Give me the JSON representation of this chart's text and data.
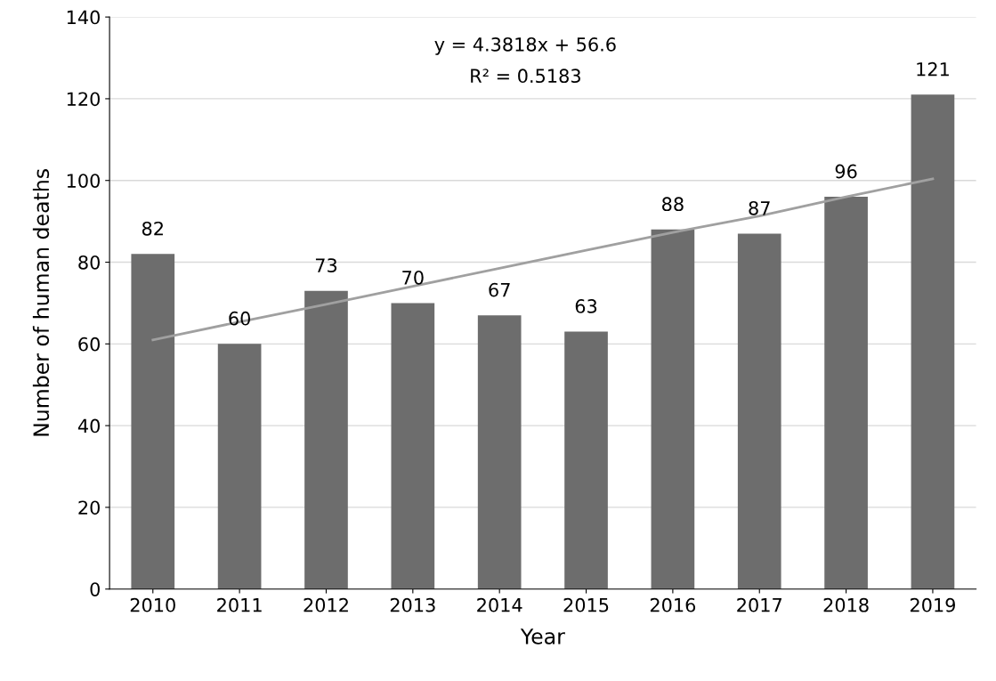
{
  "chart_data": {
    "type": "bar",
    "xlabel": "Year",
    "ylabel": "Number of human deaths",
    "categories": [
      "2010",
      "2011",
      "2012",
      "2013",
      "2014",
      "2015",
      "2016",
      "2017",
      "2018",
      "2019"
    ],
    "series": [
      {
        "color": "#6d6d6d",
        "values": [
          82,
          60,
          73,
          70,
          67,
          63,
          88,
          87,
          96,
          121
        ],
        "value_labels": [
          "82",
          "60",
          "73",
          "70",
          "67",
          "63",
          "88",
          "87",
          "96",
          "121"
        ]
      },
      {
        "type": "line",
        "color": "#a0a0a0",
        "values": [
          61.0,
          65.4,
          69.7,
          74.1,
          78.5,
          82.9,
          87.3,
          91.3,
          96.0,
          100.4
        ]
      }
    ],
    "ylim": [
      0,
      140
    ],
    "yticks": [
      0,
      20,
      40,
      60,
      80,
      100,
      120,
      140
    ],
    "grid": "y",
    "annotations": [
      "y = 4.3818x + 56.6",
      "R² = 0.5183"
    ]
  }
}
